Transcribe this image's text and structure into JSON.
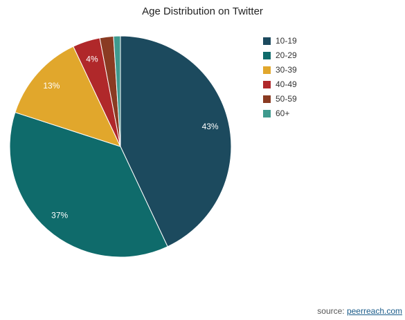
{
  "chart_data": {
    "type": "pie",
    "title": "Age Distribution on Twitter",
    "categories": [
      "10-19",
      "20-29",
      "30-39",
      "40-49",
      "50-59",
      "60+"
    ],
    "values": [
      43,
      37,
      13,
      4,
      2,
      1
    ],
    "data_labels": [
      "43%",
      "37%",
      "13%",
      "4%",
      "",
      ""
    ],
    "colors": [
      "#1c4a5e",
      "#0f6b6b",
      "#e1a72c",
      "#b0282a",
      "#8a3b22",
      "#3f9a8e"
    ],
    "legend_position": "right"
  },
  "source": {
    "prefix": "source: ",
    "link_text": "peerreach.com"
  }
}
